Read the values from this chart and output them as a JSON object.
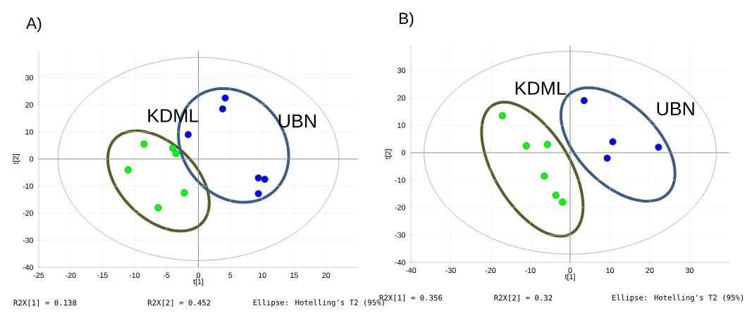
{
  "chart_data": [
    {
      "type": "scatter",
      "title": "A)",
      "xlabel": "t[1]",
      "ylabel": "t[2]",
      "xlim": [
        -25,
        25
      ],
      "ylim": [
        -40,
        40
      ],
      "xticks": [
        -25,
        -20,
        -15,
        -10,
        -5,
        0,
        5,
        10,
        15,
        20
      ],
      "yticks": [
        -40,
        -30,
        -20,
        -10,
        0,
        10,
        20,
        30
      ],
      "grid": true,
      "marker": "circle",
      "series": [
        {
          "color": "#00ff00",
          "x": [
            -11,
            -8.5,
            -4,
            -3.5,
            -2.2,
            -6.3
          ],
          "values": [
            -4,
            5.5,
            4,
            2,
            -12.5,
            -18
          ]
        },
        {
          "color": "#0000ff",
          "x": [
            -1.6,
            4.2,
            3.8,
            9.4,
            10.4,
            9.4
          ],
          "values": [
            9,
            22.5,
            18.5,
            -7,
            -7.5,
            -12.8
          ]
        }
      ],
      "annotations": [
        "KDML",
        "UBN",
        "R2X[1] = 0.138",
        "R2X[2] = 0.452",
        "Ellipse: Hotelling's T2 (95%)"
      ]
    },
    {
      "type": "scatter",
      "title": "B)",
      "xlabel": "t[1]",
      "ylabel": "t[2]",
      "xlim": [
        -40,
        40
      ],
      "ylim": [
        -40,
        39
      ],
      "xticks": [
        -40,
        -30,
        -20,
        -10,
        0,
        10,
        20,
        30
      ],
      "yticks": [
        -40,
        -30,
        -20,
        -10,
        0,
        10,
        20,
        30
      ],
      "grid": true,
      "marker": "circle",
      "series": [
        {
          "color": "#00ff00",
          "x": [
            -17,
            -11,
            -5.7,
            -6.5,
            -3.6,
            -1.9
          ],
          "values": [
            13.5,
            2.5,
            3,
            -8.5,
            -15.5,
            -18
          ]
        },
        {
          "color": "#0000ff",
          "x": [
            3.5,
            10.7,
            9.3,
            22.2
          ],
          "values": [
            19,
            4,
            -2,
            2
          ]
        }
      ],
      "annotations": [
        "KDML",
        "UBN",
        "R2X[1] = 0.356",
        "R2X[2] = 0.32",
        "Ellipse: Hotelling's T2 (95%)"
      ]
    }
  ]
}
